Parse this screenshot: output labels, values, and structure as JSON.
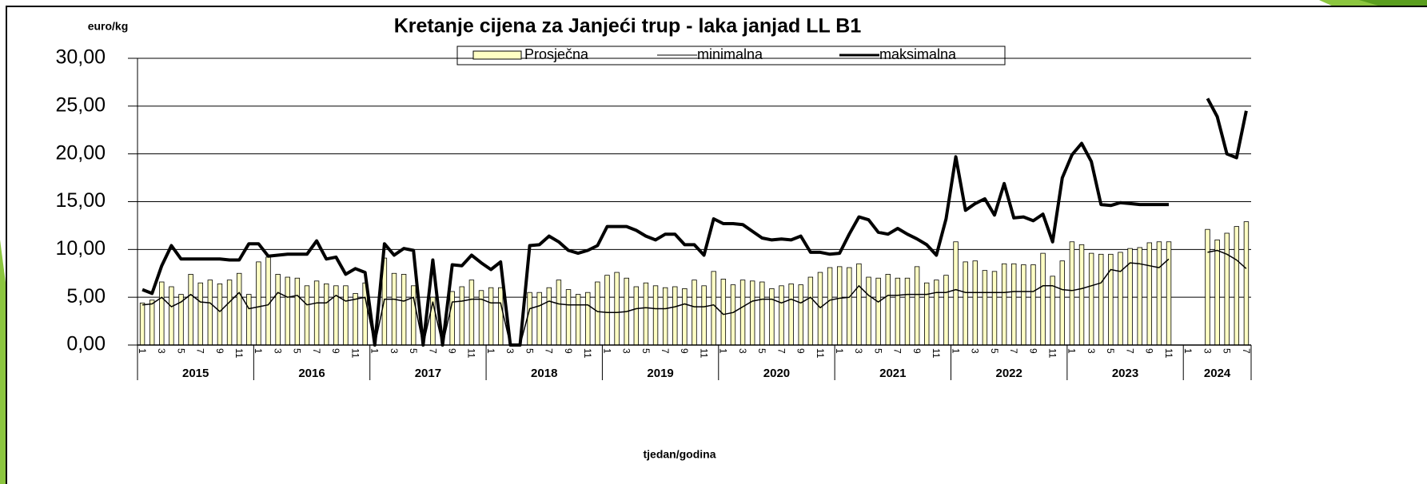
{
  "chart_data": {
    "type": "bar-line",
    "title": "Kretanje cijena za Janjeći trup - laka janjad LL B1",
    "y_unit": "euro/kg",
    "x_label": "tjedan/godina",
    "categories": [
      "1",
      null,
      "3",
      null,
      "5",
      null,
      "7",
      null,
      "9",
      null,
      "11",
      null,
      "1",
      null,
      "3",
      null,
      "5",
      null,
      "7",
      null,
      "9",
      null,
      "11",
      null,
      "1",
      null,
      "3",
      null,
      "5",
      null,
      "7",
      null,
      "9",
      null,
      "11",
      null,
      "1",
      null,
      "3",
      null,
      "5",
      null,
      "7",
      null,
      "9",
      null,
      "11",
      null,
      "1",
      null,
      "3",
      null,
      "5",
      null,
      "7",
      null,
      "9",
      null,
      "11",
      null,
      "1",
      null,
      "3",
      null,
      "5",
      null,
      "7",
      null,
      "9",
      null,
      "11",
      null,
      "1",
      null,
      "3",
      null,
      "5",
      null,
      "7",
      null,
      "9",
      null,
      "11",
      null,
      "1",
      null,
      "3",
      null,
      "5",
      null,
      "7",
      null,
      "9",
      null,
      "11",
      null,
      "1",
      null,
      "3",
      null,
      "5",
      null,
      "7",
      null,
      "9",
      null,
      "11",
      null,
      "1",
      null,
      "3",
      null,
      "5",
      null,
      "7"
    ],
    "x_groups": [
      "2015",
      "2016",
      "2017",
      "2018",
      "2019",
      "2020",
      "2021",
      "2022",
      "2023",
      "2024"
    ],
    "series": [
      {
        "name": "Prosječna",
        "color": "#ffffc4",
        "kind": "bar",
        "values": [
          4.4,
          4.7,
          6.6,
          6.1,
          5.3,
          7.4,
          6.5,
          6.8,
          6.4,
          6.8,
          7.5,
          5.3,
          8.7,
          9.2,
          7.4,
          7.1,
          7.0,
          6.2,
          6.7,
          6.4,
          6.2,
          6.2,
          5.4,
          6.5,
          0,
          9.1,
          7.5,
          7.4,
          6.2,
          0,
          5.0,
          0,
          5.6,
          6.1,
          6.8,
          5.7,
          6.0,
          6.0,
          0,
          0,
          5.5,
          5.5,
          6.0,
          6.8,
          5.8,
          5.3,
          5.5,
          6.6,
          7.3,
          7.6,
          7.0,
          6.1,
          6.5,
          6.2,
          6.0,
          6.1,
          5.9,
          6.8,
          6.2,
          7.7,
          6.9,
          6.3,
          6.8,
          6.7,
          6.6,
          5.9,
          6.2,
          6.4,
          6.3,
          7.1,
          7.6,
          8.1,
          8.2,
          8.1,
          8.5,
          7.1,
          7.0,
          7.4,
          7.0,
          7.0,
          8.2,
          6.5,
          6.8,
          7.3,
          10.8,
          8.7,
          8.8,
          7.8,
          7.7,
          8.5,
          8.5,
          8.4,
          8.4,
          9.6,
          7.2,
          8.8,
          10.8,
          10.5,
          9.6,
          9.5,
          9.5,
          9.7,
          10.1,
          10.2,
          10.7,
          10.8,
          10.8,
          null,
          null,
          null,
          12.1,
          11.0,
          11.7,
          12.4,
          12.9
        ]
      },
      {
        "name": "minimalna",
        "color": "#000000",
        "kind": "line",
        "weight": "thin",
        "values": [
          4.2,
          4.3,
          5.0,
          4.0,
          4.5,
          5.3,
          4.5,
          4.4,
          3.5,
          4.5,
          5.5,
          3.8,
          4.0,
          4.2,
          5.5,
          5.0,
          5.2,
          4.2,
          4.4,
          4.4,
          5.2,
          4.6,
          4.8,
          5.0,
          0,
          4.8,
          4.8,
          4.6,
          5.0,
          0,
          4.5,
          0,
          4.5,
          4.6,
          4.8,
          4.8,
          4.4,
          4.4,
          0,
          0,
          3.8,
          4.1,
          4.6,
          4.3,
          4.2,
          4.2,
          4.2,
          3.5,
          3.4,
          3.4,
          3.5,
          3.8,
          3.9,
          3.8,
          3.8,
          4.0,
          4.3,
          4.0,
          4.0,
          4.2,
          3.2,
          3.4,
          4.0,
          4.6,
          4.8,
          4.8,
          4.4,
          4.8,
          4.4,
          5.0,
          3.9,
          4.7,
          4.9,
          5.0,
          6.2,
          5.2,
          4.5,
          5.2,
          5.2,
          5.3,
          5.3,
          5.3,
          5.5,
          5.5,
          5.8,
          5.5,
          5.5,
          5.5,
          5.5,
          5.5,
          5.6,
          5.6,
          5.6,
          6.2,
          6.2,
          5.8,
          5.7,
          5.9,
          6.2,
          6.5,
          7.9,
          7.7,
          8.6,
          8.5,
          8.3,
          8.1,
          9.0,
          null,
          null,
          null,
          9.7,
          9.9,
          9.5,
          8.9,
          8.0
        ]
      },
      {
        "name": "maksimalna",
        "color": "#000000",
        "kind": "line",
        "weight": "bold",
        "values": [
          5.8,
          5.4,
          8.3,
          10.4,
          9.0,
          9.0,
          9.0,
          9.0,
          9.0,
          8.9,
          8.9,
          10.6,
          10.6,
          9.3,
          9.4,
          9.5,
          9.5,
          9.5,
          10.9,
          9.0,
          9.2,
          7.4,
          8.0,
          7.6,
          0,
          10.6,
          9.4,
          10.1,
          9.9,
          0,
          8.9,
          0,
          8.4,
          8.3,
          9.4,
          8.6,
          7.9,
          8.7,
          0,
          0,
          10.4,
          10.5,
          11.4,
          10.8,
          9.9,
          9.6,
          9.9,
          10.4,
          12.4,
          12.4,
          12.4,
          12.0,
          11.4,
          11.0,
          11.6,
          11.6,
          10.5,
          10.5,
          9.4,
          13.2,
          12.7,
          12.7,
          12.6,
          11.9,
          11.2,
          11.0,
          11.1,
          11.0,
          11.4,
          9.7,
          9.7,
          9.5,
          9.6,
          11.6,
          13.4,
          13.1,
          11.8,
          11.6,
          12.2,
          11.6,
          11.1,
          10.5,
          9.4,
          13.2,
          19.7,
          14.1,
          14.8,
          15.3,
          13.6,
          16.9,
          13.3,
          13.4,
          13.0,
          13.7,
          10.8,
          17.5,
          19.9,
          21.1,
          19.2,
          14.7,
          14.6,
          14.9,
          14.8,
          14.7,
          14.7,
          14.7,
          14.7,
          null,
          null,
          null,
          25.8,
          23.9,
          20.0,
          19.6,
          24.5
        ]
      }
    ],
    "ylim": [
      0,
      30
    ],
    "yticks": [
      {
        "value": 0,
        "label": "0,00"
      },
      {
        "value": 5,
        "label": "5,00"
      },
      {
        "value": 10,
        "label": "10,00"
      },
      {
        "value": 15,
        "label": "15,00"
      },
      {
        "value": 20,
        "label": "20,00"
      },
      {
        "value": 25,
        "label": "25,00"
      },
      {
        "value": 30,
        "label": "30,00"
      }
    ],
    "grid": true,
    "legend": "top"
  }
}
